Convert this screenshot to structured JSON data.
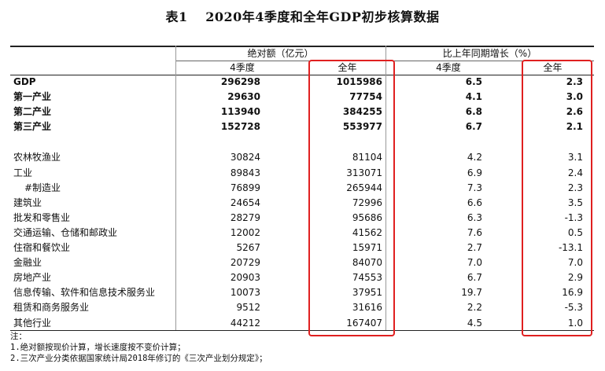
{
  "title": "表1　 2020年4季度和全年GDP初步核算数据",
  "header": {
    "group1": "绝对额（亿元）",
    "group2": "比上年同期增长（%）",
    "q4": "4季度",
    "year": "全年"
  },
  "main_rows": [
    {
      "label": "GDP",
      "q4_abs": "296298",
      "year_abs": "1015986",
      "q4_growth": "6.5",
      "year_growth": "2.3"
    },
    {
      "label": "第一产业",
      "q4_abs": "29630",
      "year_abs": "77754",
      "q4_growth": "4.1",
      "year_growth": "3.0"
    },
    {
      "label": "第二产业",
      "q4_abs": "113940",
      "year_abs": "384255",
      "q4_growth": "6.8",
      "year_growth": "2.6"
    },
    {
      "label": "第三产业",
      "q4_abs": "152728",
      "year_abs": "553977",
      "q4_growth": "6.7",
      "year_growth": "2.1"
    }
  ],
  "sector_rows": [
    {
      "label": "农林牧渔业",
      "q4_abs": "30824",
      "year_abs": "81104",
      "q4_growth": "4.2",
      "year_growth": "3.1"
    },
    {
      "label": "工业",
      "q4_abs": "89843",
      "year_abs": "313071",
      "q4_growth": "6.9",
      "year_growth": "2.4"
    },
    {
      "label": "#制造业",
      "q4_abs": "76899",
      "year_abs": "265944",
      "q4_growth": "7.3",
      "year_growth": "2.3",
      "indent": true
    },
    {
      "label": "建筑业",
      "q4_abs": "24654",
      "year_abs": "72996",
      "q4_growth": "6.6",
      "year_growth": "3.5"
    },
    {
      "label": "批发和零售业",
      "q4_abs": "28279",
      "year_abs": "95686",
      "q4_growth": "6.3",
      "year_growth": "-1.3"
    },
    {
      "label": "交通运输、仓储和邮政业",
      "q4_abs": "12002",
      "year_abs": "41562",
      "q4_growth": "7.6",
      "year_growth": "0.5"
    },
    {
      "label": "住宿和餐饮业",
      "q4_abs": "5267",
      "year_abs": "15971",
      "q4_growth": "2.7",
      "year_growth": "-13.1"
    },
    {
      "label": "金融业",
      "q4_abs": "20729",
      "year_abs": "84070",
      "q4_growth": "7.0",
      "year_growth": "7.0"
    },
    {
      "label": "房地产业",
      "q4_abs": "20903",
      "year_abs": "74553",
      "q4_growth": "6.7",
      "year_growth": "2.9"
    },
    {
      "label": "信息传输、软件和信息技术服务业",
      "q4_abs": "10073",
      "year_abs": "37951",
      "q4_growth": "19.7",
      "year_growth": "16.9"
    },
    {
      "label": "租赁和商务服务业",
      "q4_abs": "9512",
      "year_abs": "31616",
      "q4_growth": "2.2",
      "year_growth": "-5.3"
    },
    {
      "label": "其他行业",
      "q4_abs": "44212",
      "year_abs": "167407",
      "q4_growth": "4.5",
      "year_growth": "1.0"
    }
  ],
  "notes": [
    "注：",
    "1.绝对额按现价计算，增长速度按不变价计算；",
    "2.三次产业分类依据国家统计局2018年修订的《三次产业划分规定》；"
  ],
  "colors": {
    "highlight": "#e02020",
    "rule": "#222222"
  }
}
